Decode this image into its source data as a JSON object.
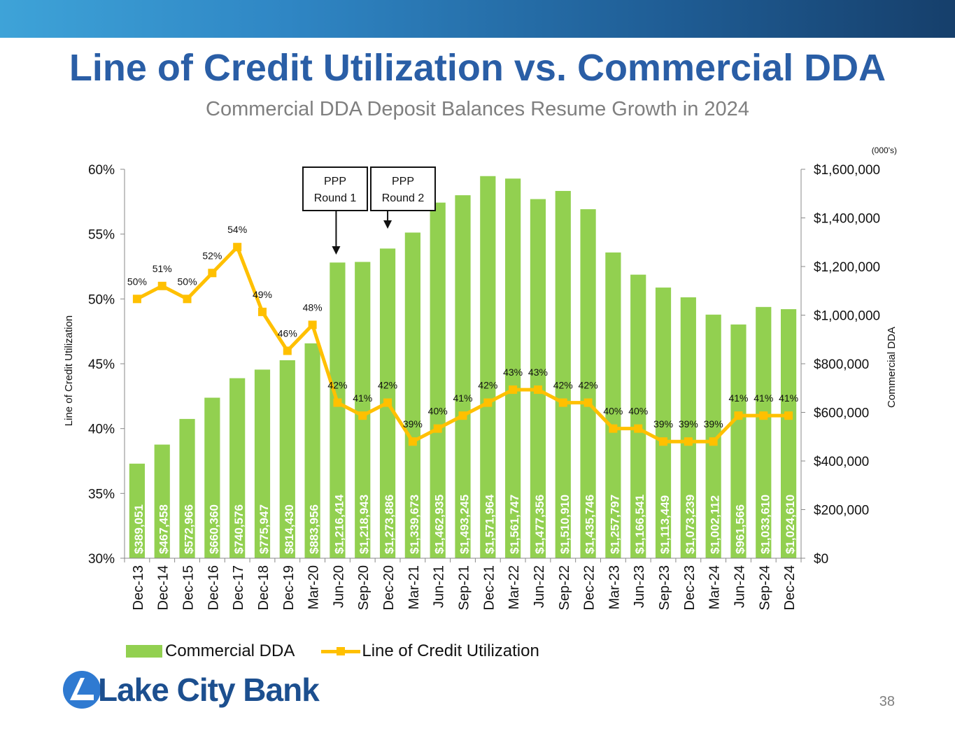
{
  "slide": {
    "title": "Line of Credit Utilization vs. Commercial DDA",
    "subtitle": "Commercial DDA Deposit Balances Resume Growth in 2024",
    "logo_text": "Lake City Bank",
    "page_number": "38"
  },
  "colors": {
    "bar": "#92d050",
    "line": "#ffc000",
    "title": "#2a5ea6",
    "subtitle": "#7f7f7f"
  },
  "legend": {
    "bar_label": "Commercial DDA",
    "line_label": "Line of Credit Utilization"
  },
  "chart_data": {
    "type": "bar",
    "title": "Line of Credit Utilization vs. Commercial DDA",
    "categories": [
      "Dec-13",
      "Dec-14",
      "Dec-15",
      "Dec-16",
      "Dec-17",
      "Dec-18",
      "Dec-19",
      "Mar-20",
      "Jun-20",
      "Sep-20",
      "Dec-20",
      "Mar-21",
      "Jun-21",
      "Sep-21",
      "Dec-21",
      "Mar-22",
      "Jun-22",
      "Sep-22",
      "Dec-22",
      "Mar-23",
      "Jun-23",
      "Sep-23",
      "Dec-23",
      "Mar-24",
      "Jun-24",
      "Sep-24",
      "Dec-24"
    ],
    "series": [
      {
        "name": "Commercial DDA",
        "type": "bar",
        "axis": "right",
        "values": [
          389051,
          467458,
          572966,
          660360,
          740576,
          775947,
          814430,
          883956,
          1216414,
          1218943,
          1273886,
          1339673,
          1462935,
          1493245,
          1571964,
          1561747,
          1477356,
          1510910,
          1435746,
          1257797,
          1166541,
          1113449,
          1073239,
          1002112,
          961566,
          1033610,
          1024610
        ],
        "labels": [
          "$389,051",
          "$467,458",
          "$572,966",
          "$660,360",
          "$740,576",
          "$775,947",
          "$814,430",
          "$883,956",
          "$1,216,414",
          "$1,218,943",
          "$1,273,886",
          "$1,339,673",
          "$1,462,935",
          "$1,493,245",
          "$1,571,964",
          "$1,561,747",
          "$1,477,356",
          "$1,510,910",
          "$1,435,746",
          "$1,257,797",
          "$1,166,541",
          "$1,113,449",
          "$1,073,239",
          "$1,002,112",
          "$961,566",
          "$1,033,610",
          "$1,024,610"
        ]
      },
      {
        "name": "Line of Credit Utilization",
        "type": "line",
        "axis": "left",
        "values": [
          50,
          51,
          50,
          52,
          54,
          49,
          46,
          48,
          42,
          41,
          42,
          39,
          40,
          41,
          42,
          43,
          43,
          42,
          42,
          40,
          40,
          39,
          39,
          39,
          41,
          41,
          41
        ],
        "labels": [
          "50%",
          "51%",
          "50%",
          "52%",
          "54%",
          "49%",
          "46%",
          "48%",
          "42%",
          "41%",
          "42%",
          "39%",
          "40%",
          "41%",
          "42%",
          "43%",
          "43%",
          "42%",
          "42%",
          "40%",
          "40%",
          "39%",
          "39%",
          "39%",
          "41%",
          "41%",
          "41%"
        ]
      }
    ],
    "left_axis": {
      "label": "Line of Credit Utilization",
      "min": 30,
      "max": 60,
      "ticks": [
        30,
        35,
        40,
        45,
        50,
        55,
        60
      ],
      "tick_labels": [
        "30%",
        "35%",
        "40%",
        "45%",
        "50%",
        "55%",
        "60%"
      ]
    },
    "right_axis": {
      "label": "Commercial DDA",
      "units_note": "(000's)",
      "min": 0,
      "max": 1600000,
      "ticks": [
        0,
        200000,
        400000,
        600000,
        800000,
        1000000,
        1200000,
        1400000,
        1600000
      ],
      "tick_labels": [
        "$0",
        "$200,000",
        "$400,000",
        "$600,000",
        "$800,000",
        "$1,000,000",
        "$1,200,000",
        "$1,400,000",
        "$1,600,000"
      ]
    },
    "annotations": [
      {
        "text_line1": "PPP",
        "text_line2": "Round 1",
        "points_to": "Jun-20"
      },
      {
        "text_line1": "PPP",
        "text_line2": "Round 2",
        "points_to": "Dec-20"
      }
    ],
    "legend_position": "bottom-left",
    "grid": false
  }
}
